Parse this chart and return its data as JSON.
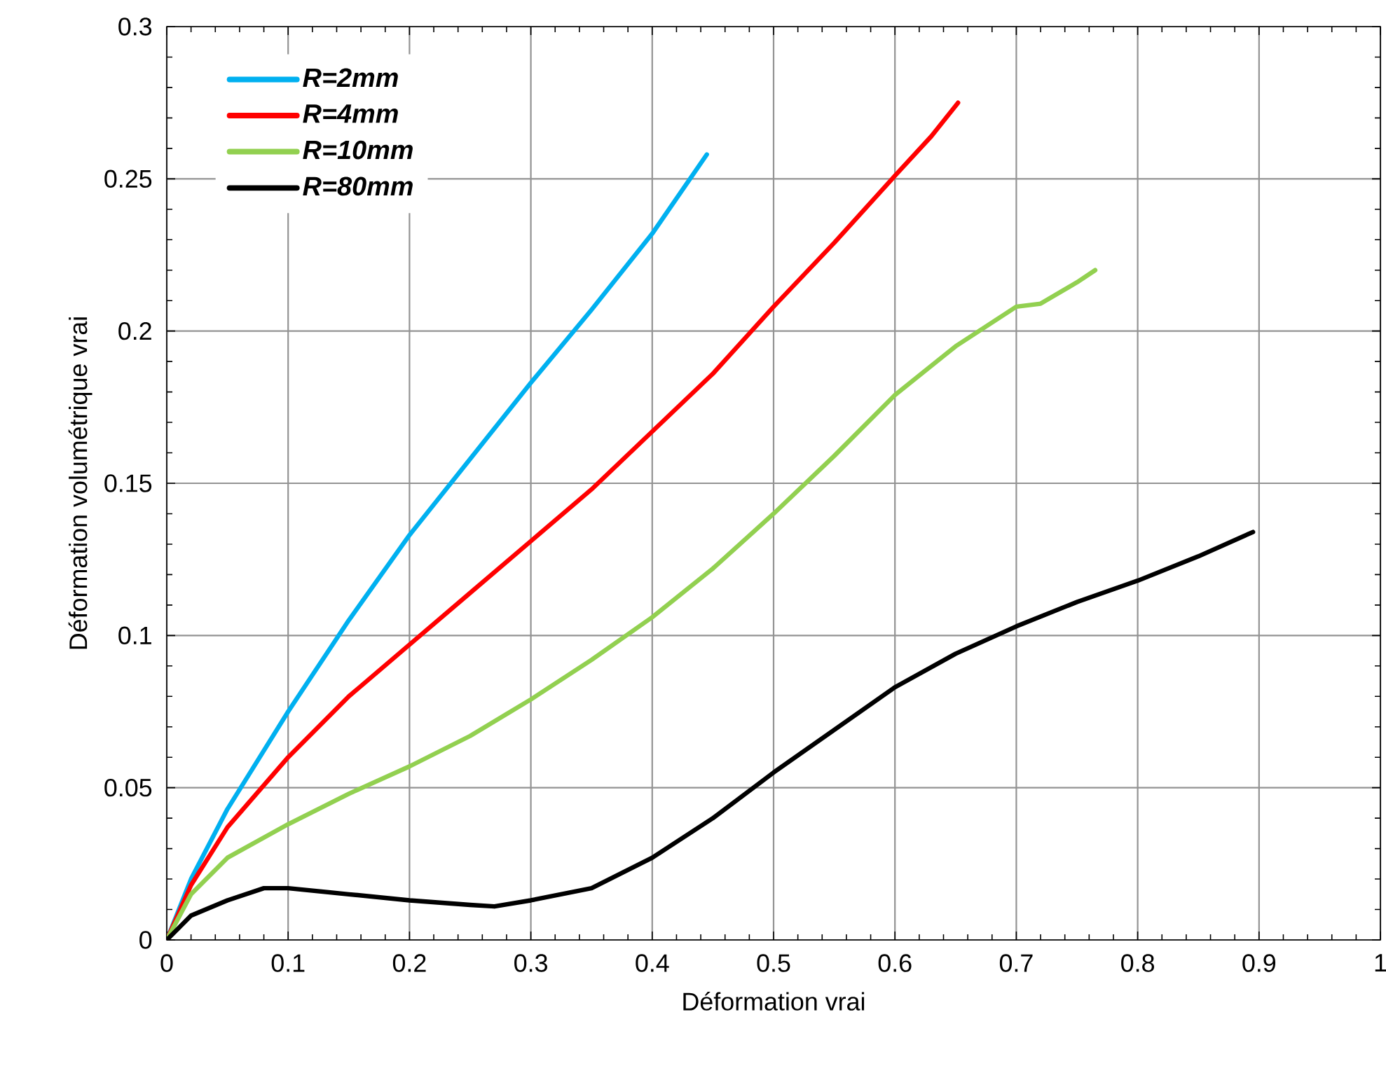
{
  "chart_data": {
    "type": "line",
    "xlabel": "Déformation vrai",
    "ylabel": "Déformation volumétrique vrai",
    "xlim": [
      0,
      1
    ],
    "ylim": [
      0,
      0.3
    ],
    "xticks": [
      0,
      0.1,
      0.2,
      0.3,
      0.4,
      0.5,
      0.6,
      0.7,
      0.8,
      0.9,
      1
    ],
    "yticks": [
      0,
      0.05,
      0.1,
      0.15,
      0.2,
      0.25,
      0.3
    ],
    "grid": true,
    "legend": "top left",
    "marker": "none",
    "line_style": "solid",
    "series": [
      {
        "name": "R=2mm",
        "color": "#00b0f0",
        "x": [
          0,
          0.02,
          0.05,
          0.1,
          0.15,
          0.2,
          0.25,
          0.3,
          0.35,
          0.4,
          0.445
        ],
        "values": [
          0,
          0.02,
          0.043,
          0.075,
          0.105,
          0.133,
          0.158,
          0.183,
          0.207,
          0.232,
          0.258
        ]
      },
      {
        "name": "R=4mm",
        "color": "#ff0000",
        "x": [
          0,
          0.02,
          0.05,
          0.1,
          0.15,
          0.2,
          0.25,
          0.3,
          0.35,
          0.4,
          0.45,
          0.5,
          0.55,
          0.6,
          0.63,
          0.652
        ],
        "values": [
          0,
          0.018,
          0.037,
          0.06,
          0.08,
          0.097,
          0.114,
          0.131,
          0.148,
          0.167,
          0.186,
          0.208,
          0.229,
          0.251,
          0.264,
          0.275
        ]
      },
      {
        "name": "R=10mm",
        "color": "#92d050",
        "x": [
          0,
          0.02,
          0.05,
          0.1,
          0.15,
          0.2,
          0.25,
          0.3,
          0.35,
          0.4,
          0.45,
          0.5,
          0.55,
          0.6,
          0.65,
          0.7,
          0.72,
          0.75,
          0.765
        ],
        "values": [
          0,
          0.015,
          0.027,
          0.038,
          0.048,
          0.057,
          0.067,
          0.079,
          0.092,
          0.106,
          0.122,
          0.14,
          0.159,
          0.179,
          0.195,
          0.208,
          0.209,
          0.216,
          0.22
        ]
      },
      {
        "name": "R=80mm",
        "color": "#000000",
        "x": [
          0,
          0.02,
          0.05,
          0.08,
          0.1,
          0.15,
          0.2,
          0.25,
          0.27,
          0.3,
          0.35,
          0.4,
          0.45,
          0.5,
          0.55,
          0.6,
          0.65,
          0.7,
          0.75,
          0.8,
          0.85,
          0.895
        ],
        "values": [
          0,
          0.008,
          0.013,
          0.017,
          0.017,
          0.015,
          0.013,
          0.0115,
          0.011,
          0.013,
          0.017,
          0.027,
          0.04,
          0.055,
          0.069,
          0.083,
          0.094,
          0.103,
          0.111,
          0.118,
          0.126,
          0.134
        ]
      }
    ]
  }
}
